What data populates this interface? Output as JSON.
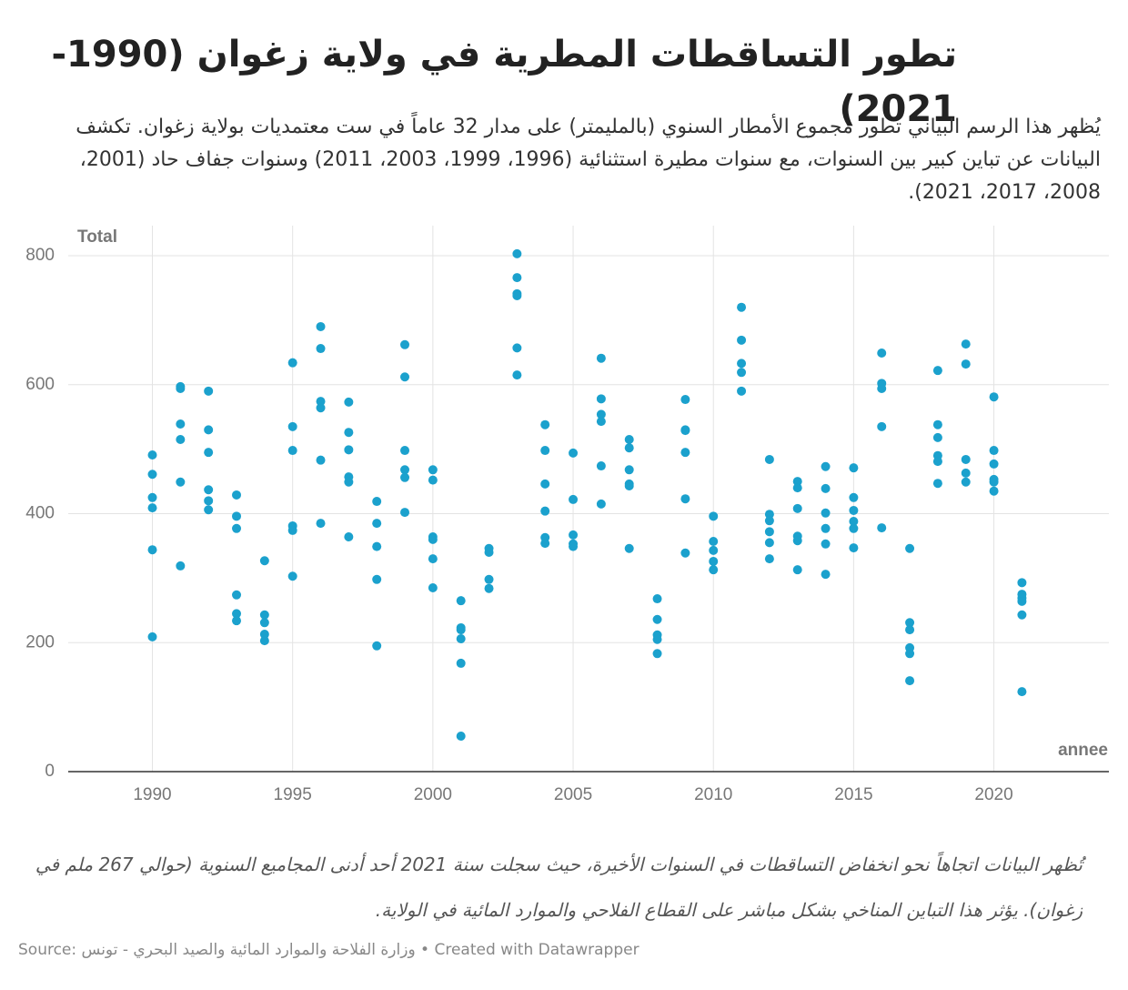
{
  "chart_data": {
    "type": "scatter",
    "title": "تطور التساقطات المطرية في ولاية زغوان (1990-2021)",
    "description": "يُظهر هذا الرسم البياني تطور مجموع الأمطار السنوي (بالمليمتر) على مدار 32 عاماً في ست معتمديات بولاية زغوان. تكشف البيانات عن تباين كبير بين السنوات، مع سنوات مطيرة استثنائية (1996، 1999، 2003، 2011) وسنوات جفاف حاد (2001، 2008، 2017، 2021).",
    "y_label": "Total",
    "x_label": "annee",
    "note": "تُظهر البيانات اتجاهاً نحو انخفاض التساقطات في السنوات الأخيرة، حيث سجلت سنة 2021 أحد أدنى المجاميع السنوية (حوالي 267 ملم في زغوان). يؤثر هذا التباين المناخي بشكل مباشر على القطاع الفلاحي والموارد المائية في الولاية.",
    "source": "Source: وزارة الفلاحة والموارد المائية والصيد البحري - تونس • Created with Datawrapper",
    "color": "#1ba1cd",
    "xlim": [
      1987,
      2024.1
    ],
    "xticks": [
      1990,
      1995,
      2000,
      2005,
      2010,
      2015,
      2020
    ],
    "ylim": [
      0,
      800
    ],
    "yticks": [
      0,
      200,
      400,
      600,
      800
    ],
    "grid": true,
    "x": [
      1990,
      1990,
      1990,
      1990,
      1990,
      1990,
      1991,
      1991,
      1991,
      1991,
      1991,
      1991,
      1992,
      1992,
      1992,
      1992,
      1992,
      1992,
      1993,
      1993,
      1993,
      1993,
      1993,
      1993,
      1994,
      1994,
      1994,
      1994,
      1994,
      1995,
      1995,
      1995,
      1995,
      1995,
      1995,
      1996,
      1996,
      1996,
      1996,
      1996,
      1996,
      1997,
      1997,
      1997,
      1997,
      1997,
      1997,
      1998,
      1998,
      1998,
      1998,
      1998,
      1999,
      1999,
      1999,
      1999,
      1999,
      1999,
      2000,
      2000,
      2000,
      2000,
      2000,
      2000,
      2001,
      2001,
      2001,
      2001,
      2001,
      2001,
      2002,
      2002,
      2002,
      2002,
      2003,
      2003,
      2003,
      2003,
      2003,
      2003,
      2004,
      2004,
      2004,
      2004,
      2004,
      2004,
      2005,
      2005,
      2005,
      2005,
      2005,
      2006,
      2006,
      2006,
      2006,
      2006,
      2006,
      2007,
      2007,
      2007,
      2007,
      2007,
      2007,
      2008,
      2008,
      2008,
      2008,
      2008,
      2009,
      2009,
      2009,
      2009,
      2009,
      2009,
      2010,
      2010,
      2010,
      2010,
      2010,
      2011,
      2011,
      2011,
      2011,
      2011,
      2012,
      2012,
      2012,
      2012,
      2012,
      2012,
      2013,
      2013,
      2013,
      2013,
      2013,
      2013,
      2014,
      2014,
      2014,
      2014,
      2014,
      2014,
      2015,
      2015,
      2015,
      2015,
      2015,
      2015,
      2016,
      2016,
      2016,
      2016,
      2016,
      2017,
      2017,
      2017,
      2017,
      2017,
      2017,
      2018,
      2018,
      2018,
      2018,
      2018,
      2018,
      2019,
      2019,
      2019,
      2019,
      2019,
      2020,
      2020,
      2020,
      2020,
      2020,
      2020,
      2021,
      2021,
      2021,
      2021,
      2021,
      2021
    ],
    "values": [
      491,
      461,
      425,
      409,
      344,
      209,
      597,
      594,
      539,
      515,
      449,
      319,
      590,
      530,
      495,
      437,
      420,
      406,
      429,
      396,
      377,
      274,
      245,
      234,
      327,
      243,
      231,
      213,
      203,
      634,
      535,
      498,
      381,
      374,
      303,
      690,
      656,
      574,
      564,
      483,
      385,
      573,
      526,
      499,
      457,
      449,
      364,
      419,
      385,
      349,
      298,
      195,
      662,
      612,
      498,
      468,
      456,
      402,
      468,
      452,
      364,
      360,
      330,
      285,
      265,
      223,
      220,
      206,
      168,
      55,
      346,
      340,
      298,
      284,
      803,
      766,
      741,
      738,
      657,
      615,
      538,
      498,
      446,
      404,
      363,
      354,
      494,
      422,
      367,
      353,
      349,
      641,
      578,
      554,
      543,
      474,
      415,
      515,
      502,
      468,
      446,
      443,
      346,
      268,
      236,
      212,
      205,
      183,
      577,
      530,
      529,
      495,
      423,
      339,
      396,
      357,
      343,
      326,
      313,
      720,
      669,
      633,
      619,
      590,
      484,
      399,
      389,
      372,
      355,
      330,
      450,
      440,
      408,
      365,
      358,
      313,
      473,
      439,
      401,
      377,
      353,
      306,
      471,
      425,
      405,
      388,
      377,
      347,
      649,
      602,
      594,
      535,
      378,
      346,
      231,
      220,
      192,
      183,
      141,
      622,
      538,
      518,
      490,
      481,
      447,
      663,
      632,
      484,
      463,
      449,
      581,
      498,
      477,
      453,
      449,
      435,
      293,
      275,
      269,
      264,
      243,
      124
    ]
  }
}
